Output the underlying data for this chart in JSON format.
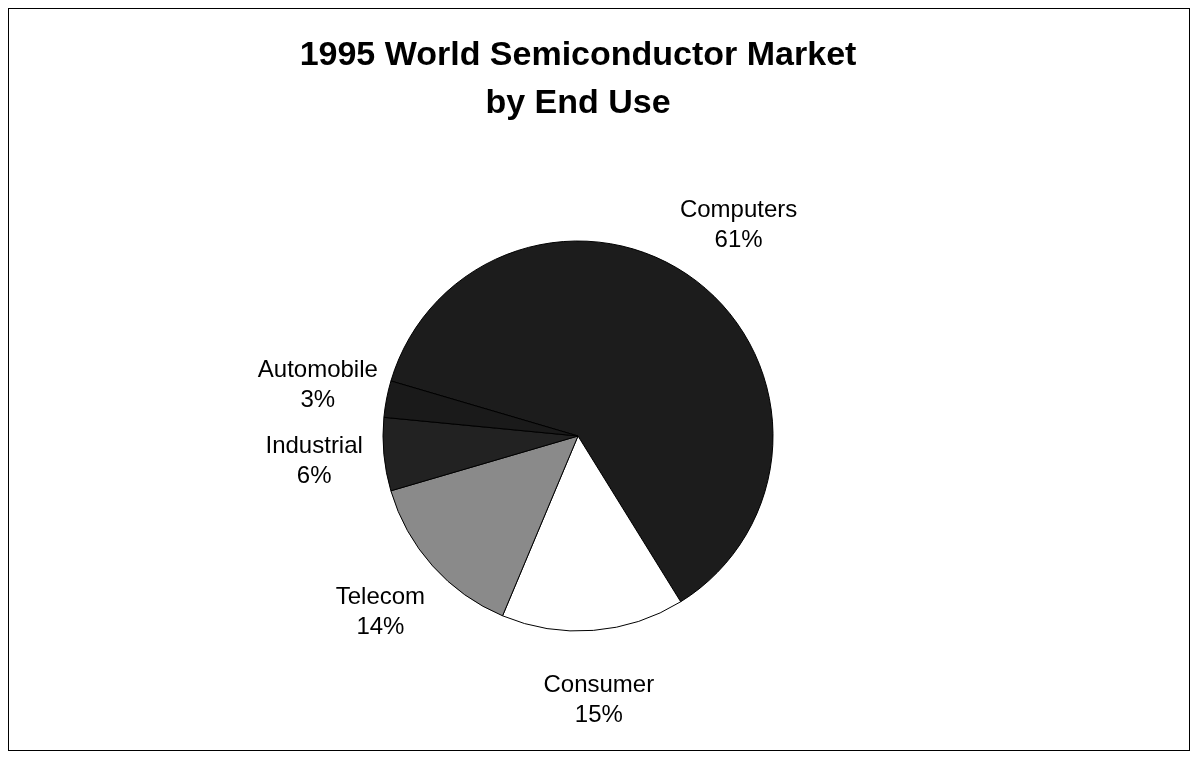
{
  "chart_data": {
    "type": "pie",
    "title": "1995 World Semiconductor Market\nby End Use",
    "categories": [
      "Computers",
      "Consumer",
      "Telecom",
      "Industrial",
      "Automobile"
    ],
    "values": [
      61,
      15,
      14,
      6,
      3
    ],
    "value_labels": [
      "61%",
      "15%",
      "14%",
      "6%",
      "3%"
    ],
    "colors": [
      "#1c1c1c",
      "#ffffff",
      "#8a8a8a",
      "#222222",
      "#1a1a1a"
    ],
    "legend": false
  }
}
